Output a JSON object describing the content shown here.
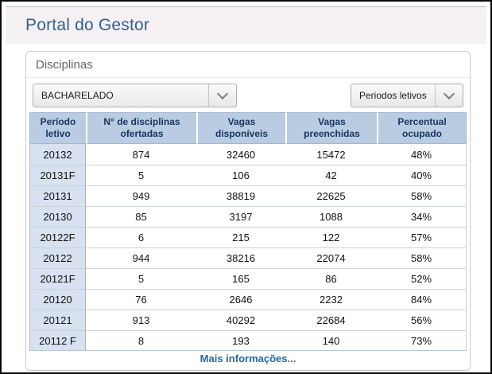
{
  "page": {
    "title": "Portal do Gestor"
  },
  "panel": {
    "title": "Disciplinas",
    "course_dropdown": {
      "value": "BACHARELADO"
    },
    "period_dropdown": {
      "value": "Periodos letivos"
    },
    "table": {
      "columns": [
        "Período\nletivo",
        "N° de disciplinas\nofertadas",
        "Vagas\ndisponíveis",
        "Vagas\npreenchidas",
        "Percentual\nocupado"
      ],
      "rows": [
        [
          "20132",
          "874",
          "32460",
          "15472",
          "48%"
        ],
        [
          "20131F",
          "5",
          "106",
          "42",
          "40%"
        ],
        [
          "20131",
          "949",
          "38819",
          "22625",
          "58%"
        ],
        [
          "20130",
          "85",
          "3197",
          "1088",
          "34%"
        ],
        [
          "20122F",
          "6",
          "215",
          "122",
          "57%"
        ],
        [
          "20122",
          "944",
          "38216",
          "22074",
          "58%"
        ],
        [
          "20121F",
          "5",
          "165",
          "86",
          "52%"
        ],
        [
          "20120",
          "76",
          "2646",
          "2232",
          "84%"
        ],
        [
          "20121",
          "913",
          "40292",
          "22684",
          "56%"
        ],
        [
          "20112 F",
          "8",
          "193",
          "140",
          "73%"
        ]
      ]
    },
    "footer_link": "Mais informações..."
  },
  "icons": {
    "chevron_down": "v"
  },
  "colors": {
    "title_blue": "#2e6291",
    "header_band_bg": "#f6f1f5",
    "table_header_bg": "#b9cce2",
    "table_header_text": "#17365d",
    "first_col_bg": "#d7e1ef",
    "link_blue": "#1f6ba6",
    "frame_border": "#0a0a0a"
  }
}
